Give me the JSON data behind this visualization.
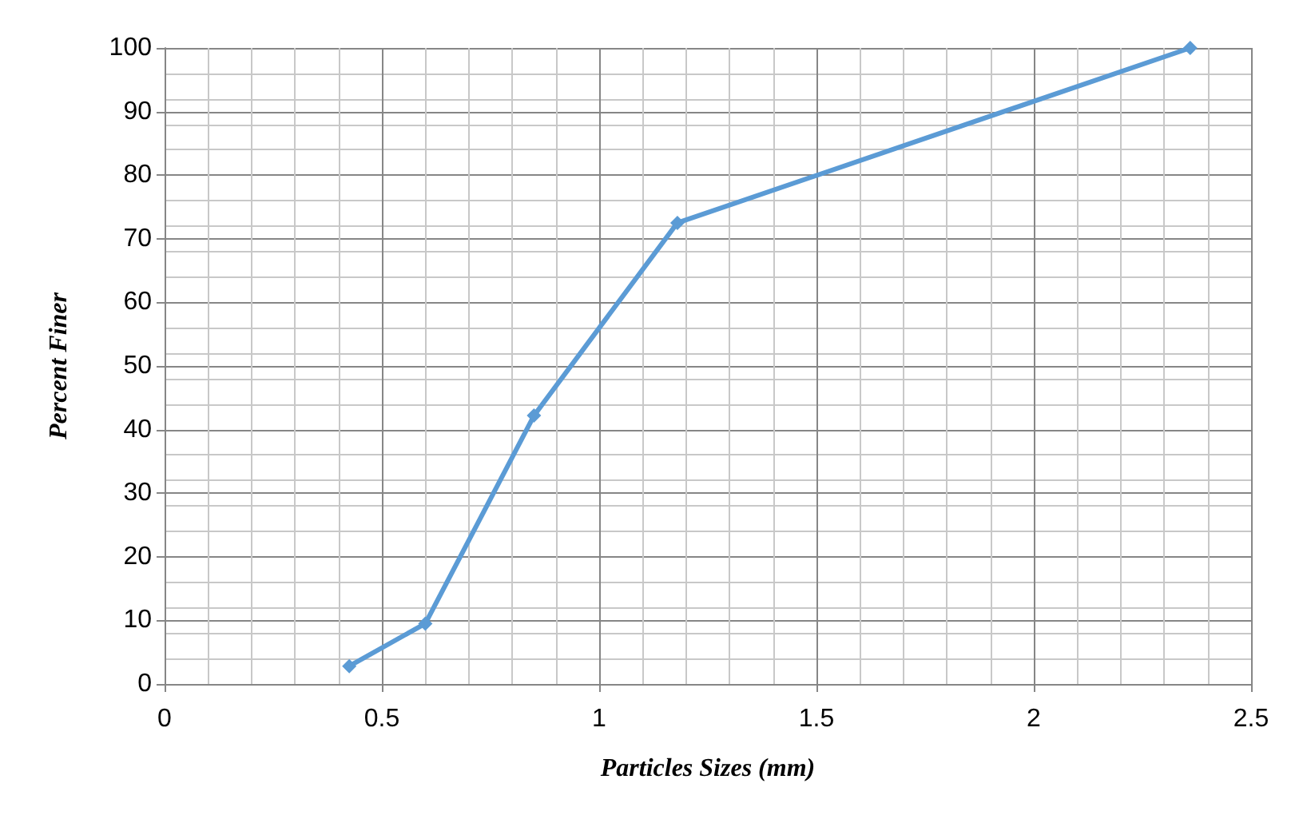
{
  "chart_data": {
    "type": "line",
    "xlabel": "Particles Sizes (mm)",
    "ylabel": "Percent Finer",
    "x": [
      0.425,
      0.6,
      0.85,
      1.18,
      2.36
    ],
    "series": [
      {
        "color": "#5b9bd5",
        "values": [
          2.8,
          9.5,
          42.2,
          72.5,
          100
        ]
      }
    ],
    "xlim": [
      0,
      2.5
    ],
    "xticks": [
      0,
      0.5,
      1,
      1.5,
      2,
      2.5
    ],
    "ylim": [
      0,
      100
    ],
    "yticks": [
      0,
      10,
      20,
      30,
      40,
      50,
      60,
      70,
      80,
      90,
      100
    ],
    "grid": true,
    "marker": "diamond",
    "line_style": "solid"
  }
}
